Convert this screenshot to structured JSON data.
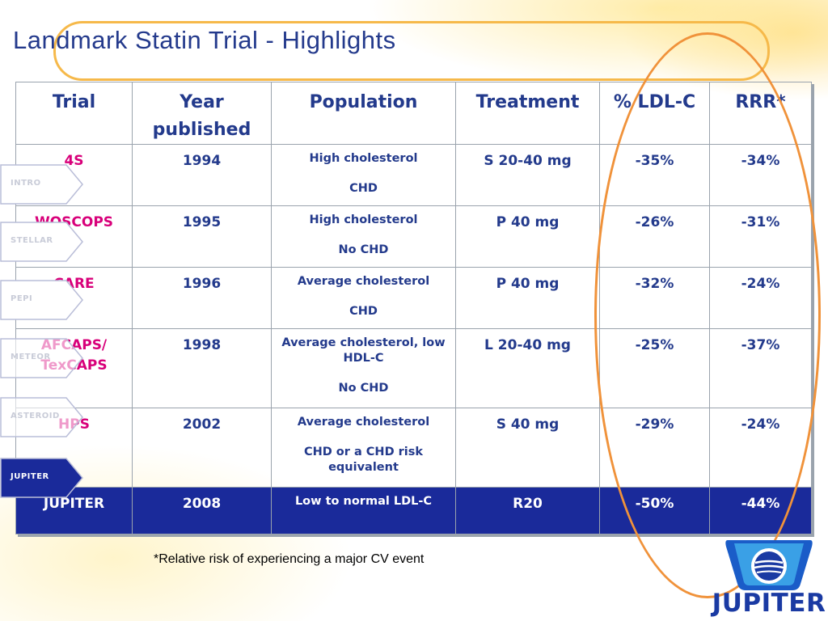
{
  "slide": {
    "title": "Landmark Statin Trial - Highlights",
    "footnote": "*Relative risk of experiencing a major CV event",
    "logo_text": "JUPITER"
  },
  "table": {
    "headers": [
      "Trial",
      "Year published",
      "Population",
      "Treatment",
      "% LDL-C",
      "RRR*"
    ],
    "rows": [
      {
        "trial": "4S",
        "year": "1994",
        "population_line1": "High cholesterol",
        "population_line2": "CHD",
        "treatment": "S 20-40 mg",
        "ldl": "-35%",
        "rrr": "-34%"
      },
      {
        "trial": "WOSCOPS",
        "year": "1995",
        "population_line1": "High cholesterol",
        "population_line2": "No CHD",
        "treatment": "P 40 mg",
        "ldl": "-26%",
        "rrr": "-31%"
      },
      {
        "trial": "CARE",
        "year": "1996",
        "population_line1": "Average cholesterol",
        "population_line2": "CHD",
        "treatment": "P 40 mg",
        "ldl": "-32%",
        "rrr": "-24%"
      },
      {
        "trial": "AFCAPS/ TexCAPS",
        "year": "1998",
        "population_line1": "Average cholesterol, low HDL-C",
        "population_line2": "No CHD",
        "treatment": "L 20-40 mg",
        "ldl": "-25%",
        "rrr": "-37%"
      },
      {
        "trial": "HPS",
        "year": "2002",
        "population_line1": "Average cholesterol",
        "population_line2": "CHD or a CHD risk equivalent",
        "treatment": "S 40 mg",
        "ldl": "-29%",
        "rrr": "-24%"
      },
      {
        "trial": "JUPITER",
        "year": "2008",
        "population_line1": "Low to normal LDL-C",
        "population_line2": "",
        "treatment": "R20",
        "ldl": "-50%",
        "rrr": "-44%"
      }
    ]
  },
  "nav": {
    "items": [
      {
        "label": "INTRO",
        "active": false
      },
      {
        "label": "STELLAR",
        "active": false
      },
      {
        "label": "PEPI",
        "active": false
      },
      {
        "label": "METEOR",
        "active": false
      },
      {
        "label": "ASTEROID",
        "active": false
      },
      {
        "label": "JUPITER",
        "active": true
      }
    ]
  },
  "colors": {
    "title": "#243a8c",
    "table_text": "#233a8c",
    "trial_name": "#d8007a",
    "highlight_row": "#1a2a9a",
    "oval": "#f0923a",
    "title_frame": "#f6b94a"
  }
}
